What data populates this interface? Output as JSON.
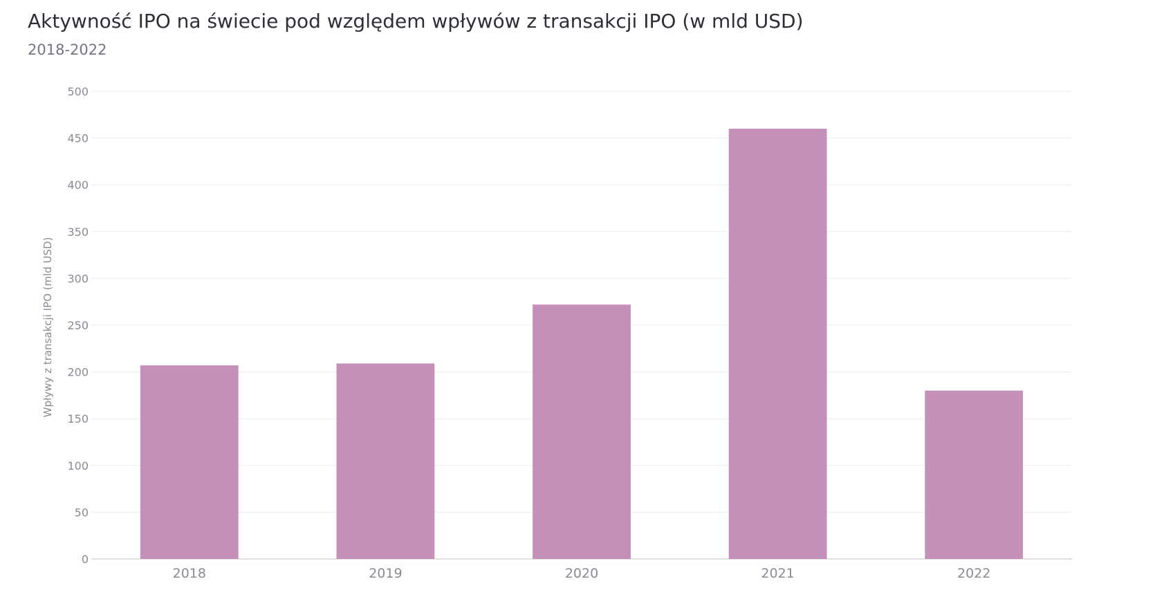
{
  "header": {
    "title": "Aktywność IPO na świecie pod względem wpływów z transakcji IPO (w mld USD)",
    "subtitle": "2018-2022"
  },
  "chart_data": {
    "type": "bar",
    "title": "Aktywność IPO na świecie pod względem wpływów z transakcji IPO (w mld USD)",
    "subtitle": "2018-2022",
    "xlabel": "",
    "ylabel": "Wpływy z transakcji IPO (mld USD)",
    "categories": [
      "2018",
      "2019",
      "2020",
      "2021",
      "2022"
    ],
    "values": [
      207,
      209,
      272,
      460,
      180
    ],
    "ylim": [
      0,
      500
    ],
    "yticks": [
      0,
      50,
      100,
      150,
      200,
      250,
      300,
      350,
      400,
      450,
      500
    ],
    "grid": true,
    "legend": "none",
    "bar_color": "#c490b8"
  }
}
